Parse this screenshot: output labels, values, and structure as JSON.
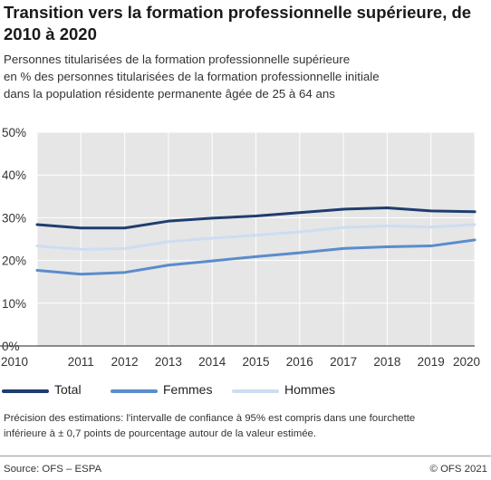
{
  "chart_data": {
    "type": "line",
    "title": "Transition vers la formation professionnelle supérieure, de 2010 à 2020",
    "subtitle_lines": [
      "Personnes titularisées de la formation professionnelle supérieure",
      "en % des personnes titularisées de la formation professionnelle initiale",
      "dans la population résidente permanente âgée de 25 à 64 ans"
    ],
    "x": [
      2010,
      2011,
      2012,
      2013,
      2014,
      2015,
      2016,
      2017,
      2018,
      2019,
      2020
    ],
    "x_tick_labels": [
      "2010",
      "2011",
      "2012",
      "2013",
      "2014",
      "2015",
      "2016",
      "2017",
      "2018",
      "2019",
      "2020"
    ],
    "ylim": [
      0,
      50
    ],
    "y_ticks": [
      0,
      10,
      20,
      30,
      40,
      50
    ],
    "y_tick_labels": [
      "0%",
      "10%",
      "20%",
      "30%",
      "40%",
      "50%"
    ],
    "grid": true,
    "legend_position": "bottom",
    "series": [
      {
        "name": "Total",
        "color": "#1f3d6e",
        "values": [
          28.4,
          27.6,
          27.6,
          29.2,
          29.9,
          30.4,
          31.2,
          32.0,
          32.3,
          31.6,
          31.4
        ]
      },
      {
        "name": "Femmes",
        "color": "#5b8ccb",
        "values": [
          17.7,
          16.8,
          17.2,
          18.9,
          19.9,
          20.9,
          21.8,
          22.8,
          23.2,
          23.4,
          24.8
        ]
      },
      {
        "name": "Hommes",
        "color": "#cdddf2",
        "values": [
          23.4,
          22.6,
          22.8,
          24.4,
          25.2,
          25.9,
          26.7,
          27.7,
          28.1,
          27.8,
          28.4
        ]
      }
    ]
  },
  "note_lines": [
    "Précision des estimations: l'intervalle de confiance à 95% est compris dans une fourchette",
    "inférieure à ± 0,7 points de pourcentage autour de la valeur estimée."
  ],
  "source": "Source: OFS – ESPA",
  "copyright": "© OFS 2021"
}
